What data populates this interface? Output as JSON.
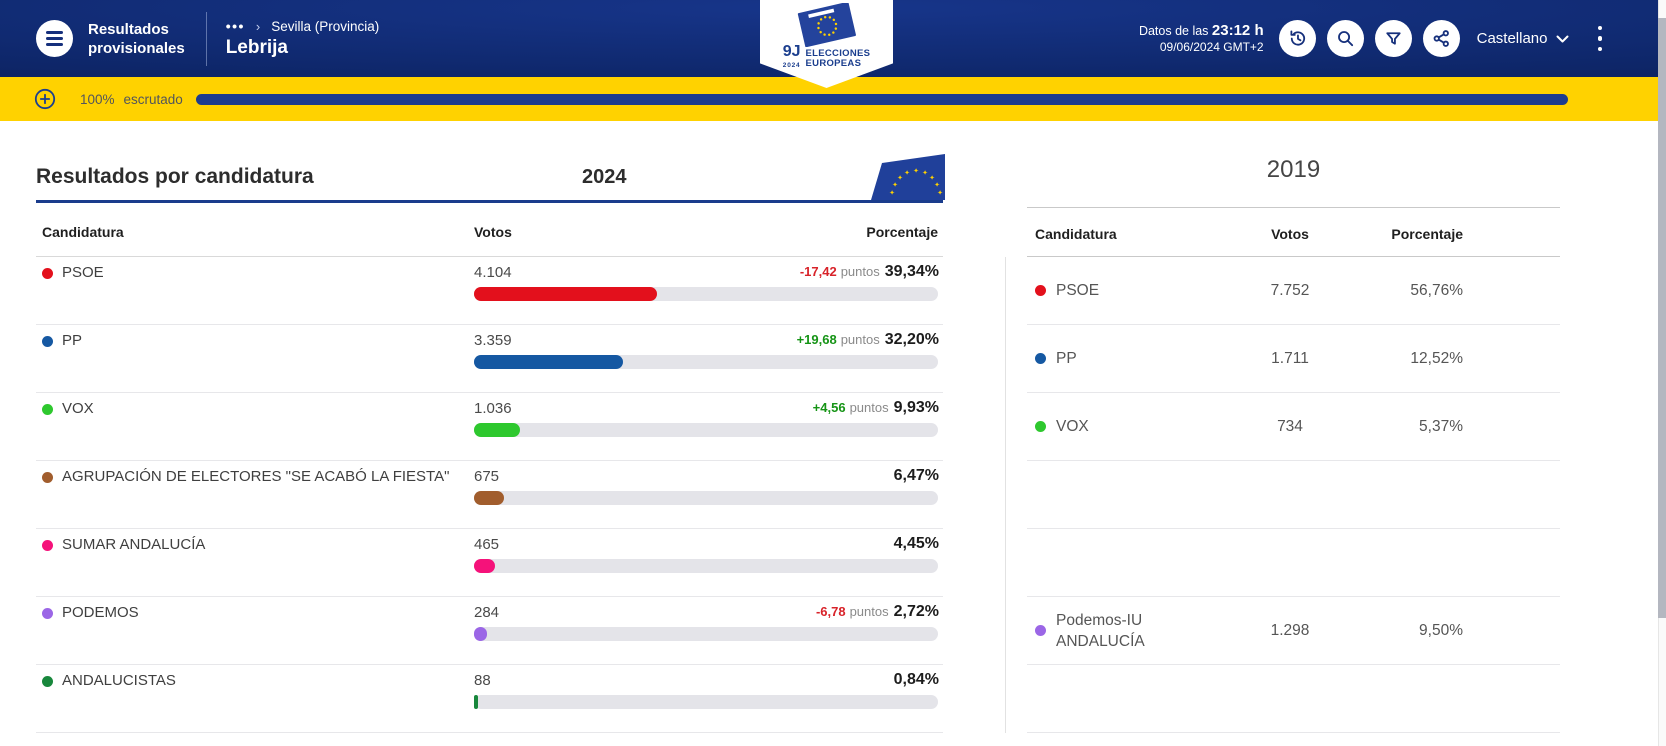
{
  "header": {
    "app_title_line1": "Resultados",
    "app_title_line2": "provisionales",
    "breadcrumb_more": "•••",
    "breadcrumb_sep": "›",
    "breadcrumb_parent": "Sevilla (Provincia)",
    "breadcrumb_current": "Lebrija",
    "logo": {
      "big": "9J",
      "year": "2024",
      "line1": "ELECCIONES",
      "line2": "EUROPEAS"
    },
    "data_label": "Datos de las",
    "data_time": "23:12 h",
    "data_date": "09/06/2024 GMT+2",
    "language": "Castellano",
    "icon_names": [
      "hamburger-icon",
      "history-icon",
      "search-icon",
      "filter-icon",
      "share-icon",
      "chevron-down-icon",
      "kebab-icon",
      "plus-icon"
    ]
  },
  "progress": {
    "percent": "100%",
    "label": "escrutado",
    "value": 100,
    "fill_color": "#1d3c8e",
    "bar_background": "#ffd200"
  },
  "results": {
    "title": "Resultados por candidatura",
    "year_2024": "2024",
    "year_2019": "2019",
    "columns": {
      "party": "Candidatura",
      "votes": "Votos",
      "pct": "Porcentaje"
    },
    "puntos_label": "puntos",
    "delta_colors": {
      "pos": "#169416",
      "neg": "#d8232a"
    },
    "table_2024": [
      {
        "party": "PSOE",
        "color": "#e3101c",
        "votes": "4.104",
        "delta": "-17,42",
        "delta_dir": "neg",
        "pct": "39,34%",
        "pct_value": 39.34
      },
      {
        "party": "PP",
        "color": "#1558a2",
        "votes": "3.359",
        "delta": "+19,68",
        "delta_dir": "pos",
        "pct": "32,20%",
        "pct_value": 32.2
      },
      {
        "party": "VOX",
        "color": "#2ec82e",
        "votes": "1.036",
        "delta": "+4,56",
        "delta_dir": "pos",
        "pct": "9,93%",
        "pct_value": 9.93
      },
      {
        "party": "AGRUPACIÓN DE ELECTORES \"SE ACABÓ LA FIESTA\"",
        "color": "#a15d2d",
        "votes": "675",
        "pct": "6,47%",
        "pct_value": 6.47
      },
      {
        "party": "SUMAR ANDALUCÍA",
        "color": "#f5127a",
        "votes": "465",
        "pct": "4,45%",
        "pct_value": 4.45
      },
      {
        "party": "PODEMOS",
        "color": "#9b66e6",
        "votes": "284",
        "delta": "-6,78",
        "delta_dir": "neg",
        "pct": "2,72%",
        "pct_value": 2.72
      },
      {
        "party": "ANDALUCISTAS",
        "color": "#18873c",
        "votes": "88",
        "pct": "0,84%",
        "pct_value": 0.84
      }
    ],
    "table_2019": [
      {
        "party": "PSOE",
        "color": "#e3101c",
        "votes": "7.752",
        "pct": "56,76%"
      },
      {
        "party": "PP",
        "color": "#1558a2",
        "votes": "1.711",
        "pct": "12,52%"
      },
      {
        "party": "VOX",
        "color": "#2ec82e",
        "votes": "734",
        "pct": "5,37%"
      },
      {
        "empty": true
      },
      {
        "empty": true
      },
      {
        "party": "Podemos-IU ANDALUCÍA",
        "color": "#9b66e6",
        "votes": "1.298",
        "pct": "9,50%"
      },
      {
        "empty": true
      }
    ]
  }
}
